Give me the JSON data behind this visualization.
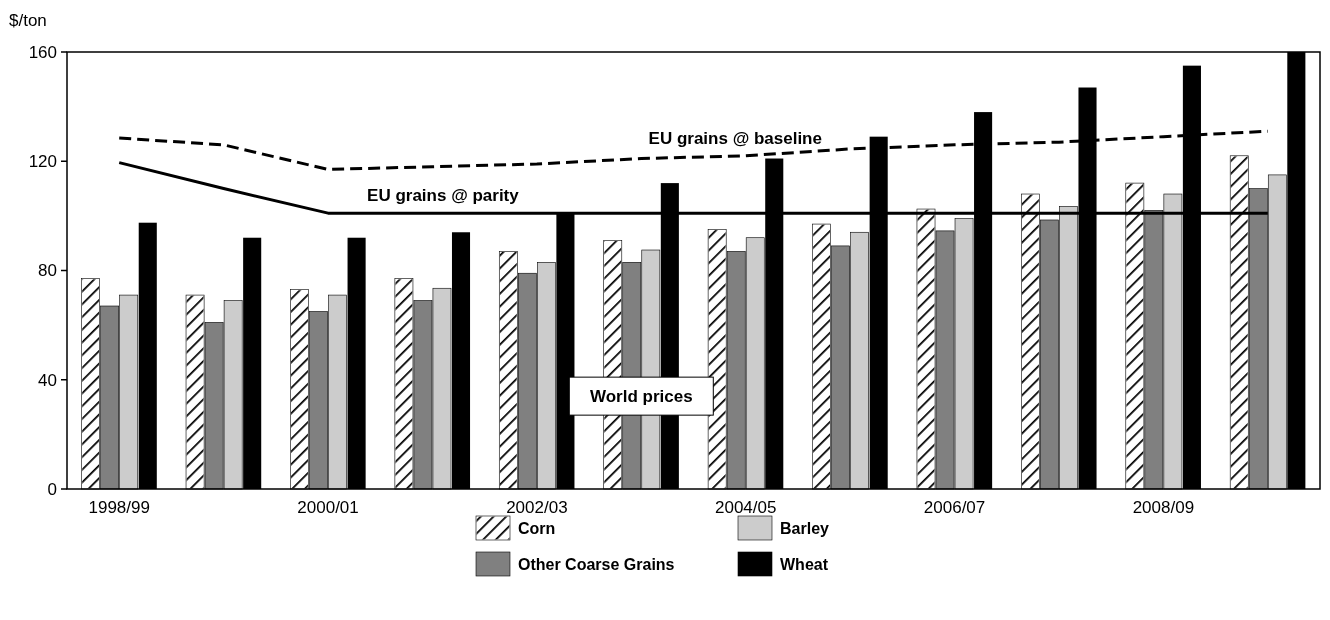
{
  "chart_data": {
    "type": "bar",
    "ylabel": "$/ton",
    "categories": [
      "1998/99",
      null,
      "2000/01",
      null,
      "2002/03",
      null,
      "2004/05",
      null,
      "2006/07",
      null,
      "2008/09",
      null
    ],
    "series": [
      {
        "name": "Corn",
        "color": "#ffffff",
        "values": [
          77,
          71,
          73,
          77,
          87,
          91,
          95,
          97,
          102.5,
          108,
          112,
          122
        ]
      },
      {
        "name": "Other Coarse Grains",
        "color": "#808080",
        "values": [
          67,
          61,
          65,
          69,
          79,
          83,
          87,
          89,
          94.5,
          98.5,
          102,
          110
        ]
      },
      {
        "name": "Barley",
        "color": "#cccccc",
        "values": [
          71,
          69,
          71,
          73.5,
          83,
          87.5,
          92,
          94,
          99,
          103.5,
          108,
          115
        ]
      },
      {
        "name": "Wheat",
        "color": "#000000",
        "values": [
          97.5,
          92,
          92,
          94,
          101,
          112,
          121,
          129,
          138,
          147,
          155,
          160
        ]
      },
      {
        "name": "EU grains @ baseline",
        "type": "line",
        "color": "#000000",
        "line_style": "dashed",
        "values": [
          128.5,
          126,
          117,
          118,
          119,
          121,
          122,
          124.5,
          126,
          127,
          129,
          131
        ]
      },
      {
        "name": "EU grains @ parity",
        "type": "line",
        "color": "#000000",
        "line_style": "solid",
        "values": [
          119.5,
          110,
          101,
          101,
          101,
          101,
          101,
          101,
          101,
          101,
          101,
          101
        ]
      }
    ],
    "ylim": [
      0,
      160
    ],
    "yticks": [
      0,
      40,
      80,
      120,
      160
    ],
    "grid": false,
    "legend": "bottom",
    "annotations": [
      "World prices"
    ]
  }
}
